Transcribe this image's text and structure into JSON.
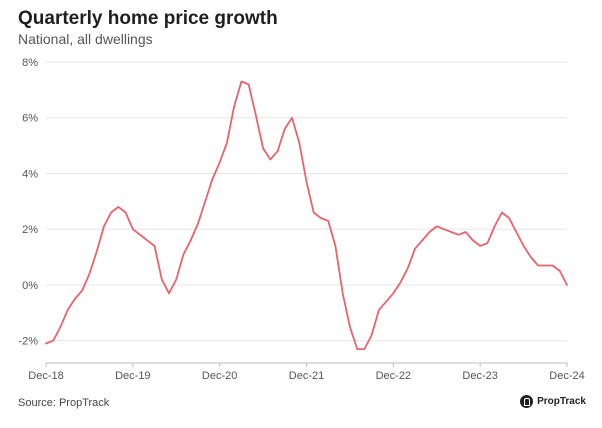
{
  "chart_data": {
    "type": "line",
    "title": "Quarterly home price growth",
    "subtitle": "National, all dwellings",
    "xlabel": "",
    "ylabel": "",
    "ylim": [
      -2.8,
      8
    ],
    "yticks": [
      -2,
      0,
      2,
      4,
      6,
      8
    ],
    "ytick_labels": [
      "-2%",
      "0%",
      "2%",
      "4%",
      "6%",
      "8%"
    ],
    "x_tick_labels": [
      "Dec-18",
      "Dec-19",
      "Dec-20",
      "Dec-21",
      "Dec-22",
      "Dec-23",
      "Dec-24"
    ],
    "x_tick_positions": [
      0,
      12,
      24,
      36,
      48,
      60,
      72
    ],
    "x_range": [
      0,
      72
    ],
    "grid": "horizontal",
    "line_color": "#e8636b",
    "series": [
      {
        "x": [
          0,
          1,
          2,
          3,
          4,
          5,
          6,
          7,
          8,
          9,
          10,
          11,
          12,
          13,
          14,
          15,
          16,
          17,
          18,
          19,
          20,
          21,
          22,
          23,
          24,
          25,
          26,
          27,
          28,
          29,
          30,
          31,
          32,
          33,
          34,
          35,
          36,
          37,
          38,
          39,
          40,
          41,
          42,
          43,
          44,
          45,
          46,
          47,
          48,
          49,
          50,
          51,
          52,
          53,
          54,
          55,
          56,
          57,
          58,
          59,
          60,
          61,
          62,
          63,
          64,
          65,
          66,
          67,
          68,
          69,
          70,
          71,
          72
        ],
        "values": [
          -2.1,
          -2.0,
          -1.5,
          -0.9,
          -0.5,
          -0.2,
          0.4,
          1.2,
          2.1,
          2.6,
          2.8,
          2.6,
          2.0,
          1.8,
          1.6,
          1.4,
          0.2,
          -0.3,
          0.2,
          1.1,
          1.6,
          2.2,
          3.0,
          3.8,
          4.4,
          5.1,
          6.4,
          7.3,
          7.2,
          6.1,
          4.9,
          4.5,
          4.8,
          5.6,
          6.0,
          5.1,
          3.7,
          2.6,
          2.4,
          2.3,
          1.4,
          -0.3,
          -1.5,
          -2.3,
          -2.3,
          -1.8,
          -0.9,
          -0.6,
          -0.3,
          0.1,
          0.6,
          1.3,
          1.6,
          1.9,
          2.1,
          2.0,
          1.9,
          1.8,
          1.9,
          1.6,
          1.4,
          1.5,
          2.1,
          2.6,
          2.4,
          1.9,
          1.4,
          1.0,
          0.7,
          0.7,
          0.7,
          0.5,
          0.0
        ]
      }
    ],
    "source": "Source: PropTrack"
  },
  "brand": {
    "name": "PropTrack",
    "logo_icon": "proptrack-logo-icon"
  }
}
